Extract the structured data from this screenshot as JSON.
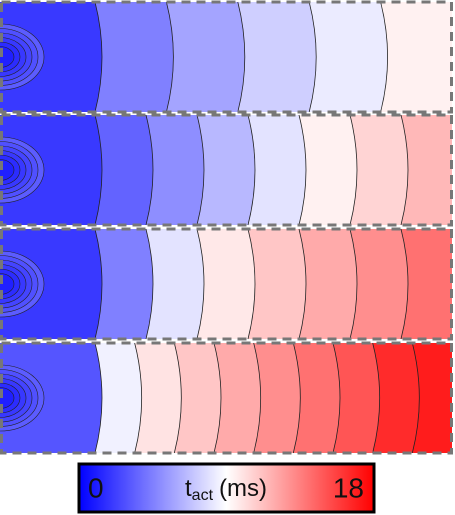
{
  "chart_data": {
    "type": "contour",
    "colormap": {
      "low": "#0000ff",
      "mid": "#ffffff",
      "high": "#ff0000"
    },
    "panels": [
      {
        "values": [
          2,
          4.5,
          5.8,
          7.3,
          8.3,
          9.5
        ]
      },
      {
        "values": [
          2,
          3.5,
          5,
          6.5,
          8,
          9.5,
          10.5,
          11.5
        ]
      },
      {
        "values": [
          2,
          4.5,
          8,
          9.8,
          11,
          12,
          13,
          14
        ]
      },
      {
        "values": [
          3,
          8.5,
          10,
          11,
          12,
          13,
          14,
          15,
          16.5,
          17
        ]
      }
    ],
    "colorbar": {
      "lim": [
        0,
        18
      ],
      "ticks": [
        0,
        18
      ],
      "label": "t",
      "label_sub": "act",
      "label_unit": "(ms)"
    }
  }
}
